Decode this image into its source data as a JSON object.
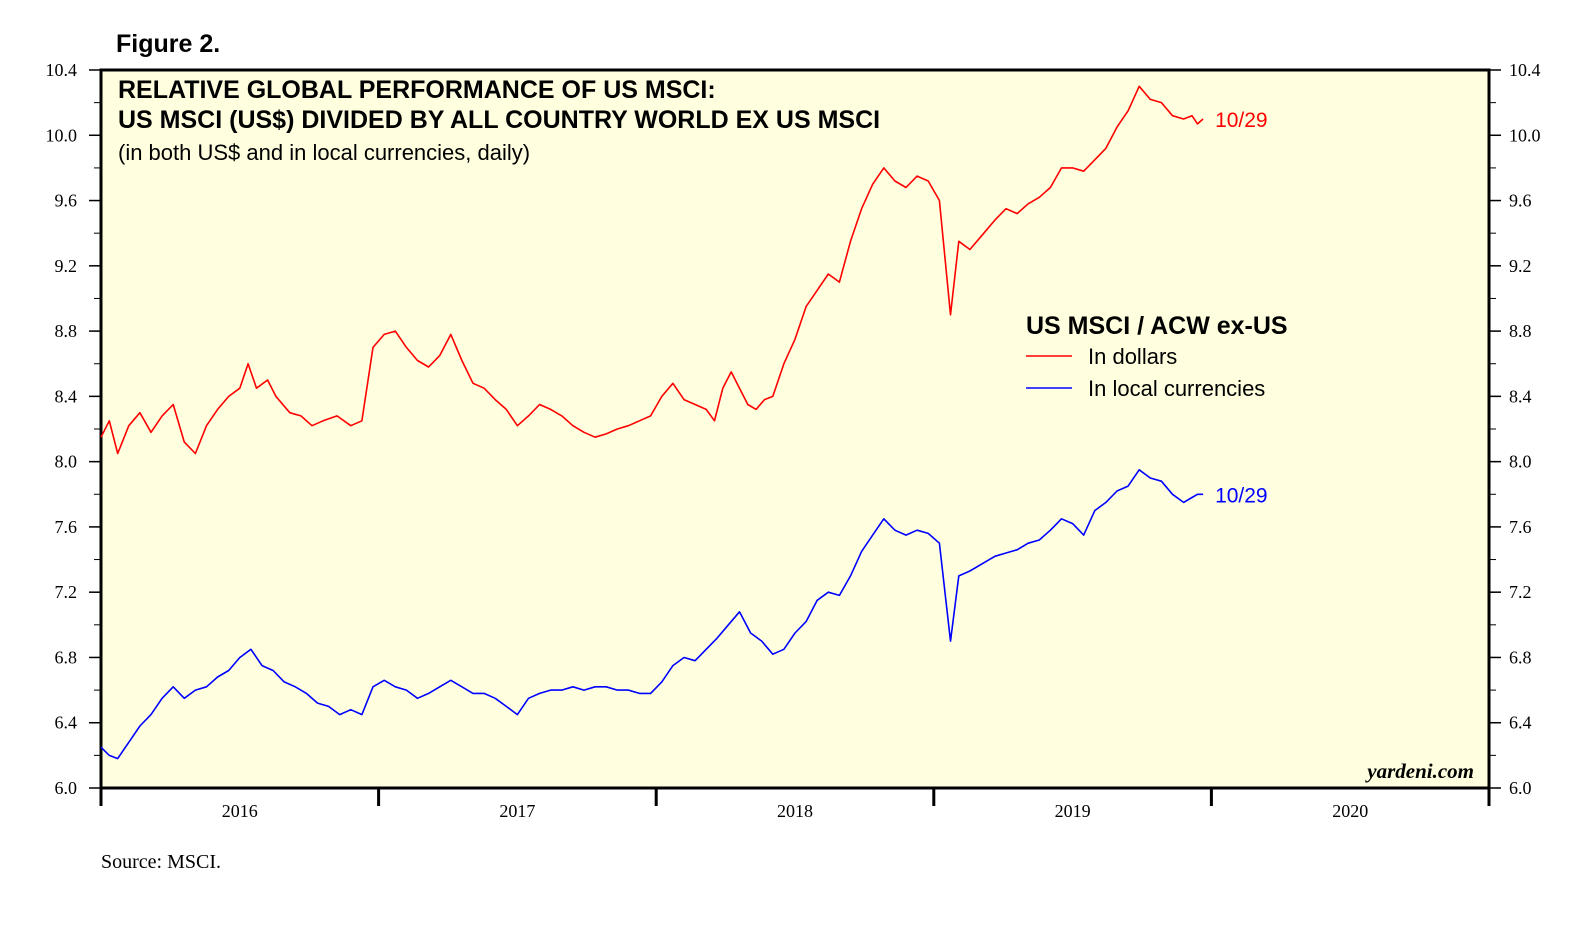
{
  "figure_label": "Figure 2.",
  "source": "Source: MSCI.",
  "watermark": "yardeni.com",
  "colors": {
    "dollars": "#ff0000",
    "local": "#0000ff",
    "plot_bg": "#ffffe0",
    "axis": "#000000"
  },
  "chart_data": {
    "type": "line",
    "title_lines": [
      "RELATIVE GLOBAL PERFORMANCE OF US MSCI:",
      "US MSCI (US$) DIVIDED BY ALL COUNTRY WORLD EX US MSCI"
    ],
    "subtitle": "(in both US$ and in local currencies, daily)",
    "legend_title": "US MSCI / ACW ex-US",
    "ylim": [
      6.0,
      10.4
    ],
    "xlim": [
      2015.5,
      2020.5
    ],
    "y_ticks": [
      "6.0",
      "6.4",
      "6.8",
      "7.2",
      "7.6",
      "8.0",
      "8.4",
      "8.8",
      "9.2",
      "9.6",
      "10.0",
      "10.4"
    ],
    "y_minor_step": 0.2,
    "x_year_boundaries": [
      2015.5,
      2016.5,
      2017.5,
      2018.5,
      2019.5,
      2020.5
    ],
    "x_tick_labels": [
      {
        "x": 2016,
        "label": "2016"
      },
      {
        "x": 2017,
        "label": "2017"
      },
      {
        "x": 2018,
        "label": "2018"
      },
      {
        "x": 2019,
        "label": "2019"
      },
      {
        "x": 2020,
        "label": "2020"
      }
    ],
    "series": [
      {
        "name": "In dollars",
        "end_label": "10/29",
        "points": [
          [
            2015.5,
            8.15
          ],
          [
            2015.53,
            8.25
          ],
          [
            2015.56,
            8.05
          ],
          [
            2015.6,
            8.22
          ],
          [
            2015.64,
            8.3
          ],
          [
            2015.68,
            8.18
          ],
          [
            2015.72,
            8.28
          ],
          [
            2015.76,
            8.35
          ],
          [
            2015.8,
            8.12
          ],
          [
            2015.84,
            8.05
          ],
          [
            2015.88,
            8.22
          ],
          [
            2015.92,
            8.32
          ],
          [
            2015.96,
            8.4
          ],
          [
            2016.0,
            8.45
          ],
          [
            2016.03,
            8.6
          ],
          [
            2016.06,
            8.45
          ],
          [
            2016.1,
            8.5
          ],
          [
            2016.13,
            8.4
          ],
          [
            2016.18,
            8.3
          ],
          [
            2016.22,
            8.28
          ],
          [
            2016.26,
            8.22
          ],
          [
            2016.3,
            8.25
          ],
          [
            2016.35,
            8.28
          ],
          [
            2016.4,
            8.22
          ],
          [
            2016.44,
            8.25
          ],
          [
            2016.48,
            8.7
          ],
          [
            2016.52,
            8.78
          ],
          [
            2016.56,
            8.8
          ],
          [
            2016.6,
            8.7
          ],
          [
            2016.64,
            8.62
          ],
          [
            2016.68,
            8.58
          ],
          [
            2016.72,
            8.65
          ],
          [
            2016.76,
            8.78
          ],
          [
            2016.8,
            8.62
          ],
          [
            2016.84,
            8.48
          ],
          [
            2016.88,
            8.45
          ],
          [
            2016.92,
            8.38
          ],
          [
            2016.96,
            8.32
          ],
          [
            2017.0,
            8.22
          ],
          [
            2017.04,
            8.28
          ],
          [
            2017.08,
            8.35
          ],
          [
            2017.12,
            8.32
          ],
          [
            2017.16,
            8.28
          ],
          [
            2017.2,
            8.22
          ],
          [
            2017.24,
            8.18
          ],
          [
            2017.28,
            8.15
          ],
          [
            2017.32,
            8.17
          ],
          [
            2017.36,
            8.2
          ],
          [
            2017.4,
            8.22
          ],
          [
            2017.44,
            8.25
          ],
          [
            2017.48,
            8.28
          ],
          [
            2017.52,
            8.4
          ],
          [
            2017.56,
            8.48
          ],
          [
            2017.6,
            8.38
          ],
          [
            2017.64,
            8.35
          ],
          [
            2017.68,
            8.32
          ],
          [
            2017.71,
            8.25
          ],
          [
            2017.74,
            8.45
          ],
          [
            2017.77,
            8.55
          ],
          [
            2017.8,
            8.45
          ],
          [
            2017.83,
            8.35
          ],
          [
            2017.86,
            8.32
          ],
          [
            2017.89,
            8.38
          ],
          [
            2017.92,
            8.4
          ],
          [
            2017.96,
            8.6
          ],
          [
            2018.0,
            8.75
          ],
          [
            2018.04,
            8.95
          ],
          [
            2018.08,
            9.05
          ],
          [
            2018.12,
            9.15
          ],
          [
            2018.16,
            9.1
          ],
          [
            2018.2,
            9.35
          ],
          [
            2018.24,
            9.55
          ],
          [
            2018.28,
            9.7
          ],
          [
            2018.32,
            9.8
          ],
          [
            2018.36,
            9.72
          ],
          [
            2018.4,
            9.68
          ],
          [
            2018.44,
            9.75
          ],
          [
            2018.48,
            9.72
          ],
          [
            2018.52,
            9.6
          ],
          [
            2018.56,
            8.9
          ],
          [
            2018.59,
            9.35
          ],
          [
            2018.63,
            9.3
          ],
          [
            2018.68,
            9.4
          ],
          [
            2018.72,
            9.48
          ],
          [
            2018.76,
            9.55
          ],
          [
            2018.8,
            9.52
          ],
          [
            2018.84,
            9.58
          ],
          [
            2018.88,
            9.62
          ],
          [
            2018.92,
            9.68
          ],
          [
            2018.96,
            9.8
          ],
          [
            2019.0,
            9.8
          ],
          [
            2019.04,
            9.78
          ],
          [
            2019.08,
            9.85
          ],
          [
            2019.12,
            9.92
          ],
          [
            2019.16,
            10.05
          ],
          [
            2019.2,
            10.15
          ],
          [
            2019.24,
            10.3
          ],
          [
            2019.28,
            10.22
          ],
          [
            2019.32,
            10.2
          ],
          [
            2019.36,
            10.12
          ],
          [
            2019.4,
            10.1
          ],
          [
            2019.43,
            10.12
          ],
          [
            2019.45,
            10.07
          ],
          [
            2019.47,
            10.1
          ]
        ]
      },
      {
        "name": "In local currencies",
        "end_label": "10/29",
        "points": [
          [
            2015.5,
            6.25
          ],
          [
            2015.53,
            6.2
          ],
          [
            2015.56,
            6.18
          ],
          [
            2015.6,
            6.28
          ],
          [
            2015.64,
            6.38
          ],
          [
            2015.68,
            6.45
          ],
          [
            2015.72,
            6.55
          ],
          [
            2015.76,
            6.62
          ],
          [
            2015.8,
            6.55
          ],
          [
            2015.84,
            6.6
          ],
          [
            2015.88,
            6.62
          ],
          [
            2015.92,
            6.68
          ],
          [
            2015.96,
            6.72
          ],
          [
            2016.0,
            6.8
          ],
          [
            2016.04,
            6.85
          ],
          [
            2016.08,
            6.75
          ],
          [
            2016.12,
            6.72
          ],
          [
            2016.16,
            6.65
          ],
          [
            2016.2,
            6.62
          ],
          [
            2016.24,
            6.58
          ],
          [
            2016.28,
            6.52
          ],
          [
            2016.32,
            6.5
          ],
          [
            2016.36,
            6.45
          ],
          [
            2016.4,
            6.48
          ],
          [
            2016.44,
            6.45
          ],
          [
            2016.48,
            6.62
          ],
          [
            2016.52,
            6.66
          ],
          [
            2016.56,
            6.62
          ],
          [
            2016.6,
            6.6
          ],
          [
            2016.64,
            6.55
          ],
          [
            2016.68,
            6.58
          ],
          [
            2016.72,
            6.62
          ],
          [
            2016.76,
            6.66
          ],
          [
            2016.8,
            6.62
          ],
          [
            2016.84,
            6.58
          ],
          [
            2016.88,
            6.58
          ],
          [
            2016.92,
            6.55
          ],
          [
            2016.96,
            6.5
          ],
          [
            2017.0,
            6.45
          ],
          [
            2017.04,
            6.55
          ],
          [
            2017.08,
            6.58
          ],
          [
            2017.12,
            6.6
          ],
          [
            2017.16,
            6.6
          ],
          [
            2017.2,
            6.62
          ],
          [
            2017.24,
            6.6
          ],
          [
            2017.28,
            6.62
          ],
          [
            2017.32,
            6.62
          ],
          [
            2017.36,
            6.6
          ],
          [
            2017.4,
            6.6
          ],
          [
            2017.44,
            6.58
          ],
          [
            2017.48,
            6.58
          ],
          [
            2017.52,
            6.65
          ],
          [
            2017.56,
            6.75
          ],
          [
            2017.6,
            6.8
          ],
          [
            2017.64,
            6.78
          ],
          [
            2017.68,
            6.85
          ],
          [
            2017.72,
            6.92
          ],
          [
            2017.76,
            7.0
          ],
          [
            2017.8,
            7.08
          ],
          [
            2017.84,
            6.95
          ],
          [
            2017.88,
            6.9
          ],
          [
            2017.92,
            6.82
          ],
          [
            2017.96,
            6.85
          ],
          [
            2018.0,
            6.95
          ],
          [
            2018.04,
            7.02
          ],
          [
            2018.08,
            7.15
          ],
          [
            2018.12,
            7.2
          ],
          [
            2018.16,
            7.18
          ],
          [
            2018.2,
            7.3
          ],
          [
            2018.24,
            7.45
          ],
          [
            2018.28,
            7.55
          ],
          [
            2018.32,
            7.65
          ],
          [
            2018.36,
            7.58
          ],
          [
            2018.4,
            7.55
          ],
          [
            2018.44,
            7.58
          ],
          [
            2018.48,
            7.56
          ],
          [
            2018.52,
            7.5
          ],
          [
            2018.56,
            6.9
          ],
          [
            2018.59,
            7.3
          ],
          [
            2018.63,
            7.33
          ],
          [
            2018.68,
            7.38
          ],
          [
            2018.72,
            7.42
          ],
          [
            2018.76,
            7.44
          ],
          [
            2018.8,
            7.46
          ],
          [
            2018.84,
            7.5
          ],
          [
            2018.88,
            7.52
          ],
          [
            2018.92,
            7.58
          ],
          [
            2018.96,
            7.65
          ],
          [
            2019.0,
            7.62
          ],
          [
            2019.04,
            7.55
          ],
          [
            2019.08,
            7.7
          ],
          [
            2019.12,
            7.75
          ],
          [
            2019.16,
            7.82
          ],
          [
            2019.2,
            7.85
          ],
          [
            2019.24,
            7.95
          ],
          [
            2019.28,
            7.9
          ],
          [
            2019.32,
            7.88
          ],
          [
            2019.36,
            7.8
          ],
          [
            2019.4,
            7.75
          ],
          [
            2019.43,
            7.78
          ],
          [
            2019.45,
            7.8
          ],
          [
            2019.47,
            7.8
          ]
        ]
      }
    ]
  }
}
